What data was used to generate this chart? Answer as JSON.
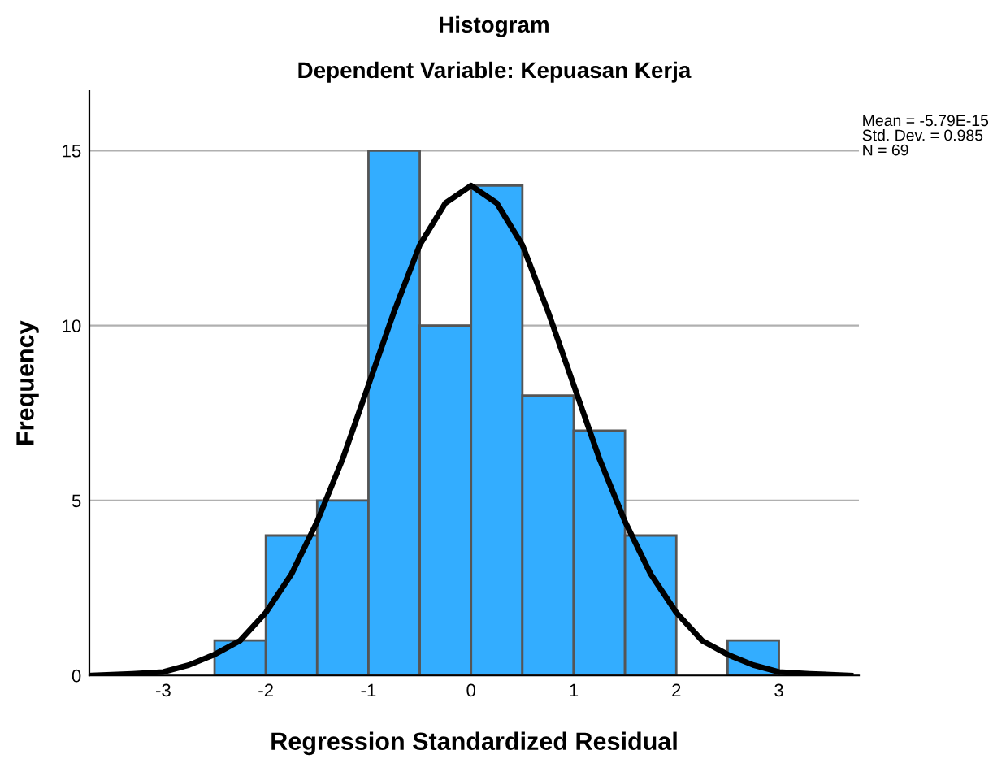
{
  "chart_data": {
    "type": "histogram",
    "title": "Histogram",
    "subtitle": "Dependent Variable: Kepuasan Kerja",
    "xlabel": "Regression Standardized Residual",
    "ylabel": "Frequency",
    "bins": [
      -2.5,
      -2.0,
      -1.5,
      -1.0,
      -0.5,
      0.0,
      0.5,
      1.0,
      1.5,
      2.0,
      2.5,
      3.0
    ],
    "values": [
      1,
      4,
      5,
      15,
      10,
      14,
      8,
      7,
      4,
      0,
      1
    ],
    "color": "#33adff",
    "series": [
      {
        "type": "line",
        "color": "#000000",
        "x": [
          -3.7,
          -3.3,
          -3.0,
          -2.75,
          -2.5,
          -2.25,
          -2.0,
          -1.75,
          -1.5,
          -1.25,
          -1.0,
          -0.75,
          -0.5,
          -0.25,
          0.0,
          0.25,
          0.5,
          0.75,
          1.0,
          1.25,
          1.5,
          1.75,
          2.0,
          2.25,
          2.5,
          2.75,
          3.0,
          3.3,
          3.7
        ],
        "values": [
          0.0,
          0.05,
          0.1,
          0.3,
          0.6,
          1.0,
          1.8,
          2.9,
          4.4,
          6.2,
          8.3,
          10.4,
          12.3,
          13.5,
          14.0,
          13.5,
          12.3,
          10.4,
          8.3,
          6.2,
          4.4,
          2.9,
          1.8,
          1.0,
          0.6,
          0.3,
          0.1,
          0.05,
          0.0
        ]
      }
    ],
    "annotations": [
      "Mean = -5.79E-15",
      "Std. Dev. = 0.985",
      "N = 69"
    ],
    "xlim": [
      -3.72,
      3.78
    ],
    "ylim": [
      0,
      16.7
    ],
    "xticks": [
      -3,
      -2,
      -1,
      0,
      1,
      2,
      3
    ],
    "yticks": [
      0,
      5,
      10,
      15
    ],
    "grid": "y",
    "legend": false
  }
}
